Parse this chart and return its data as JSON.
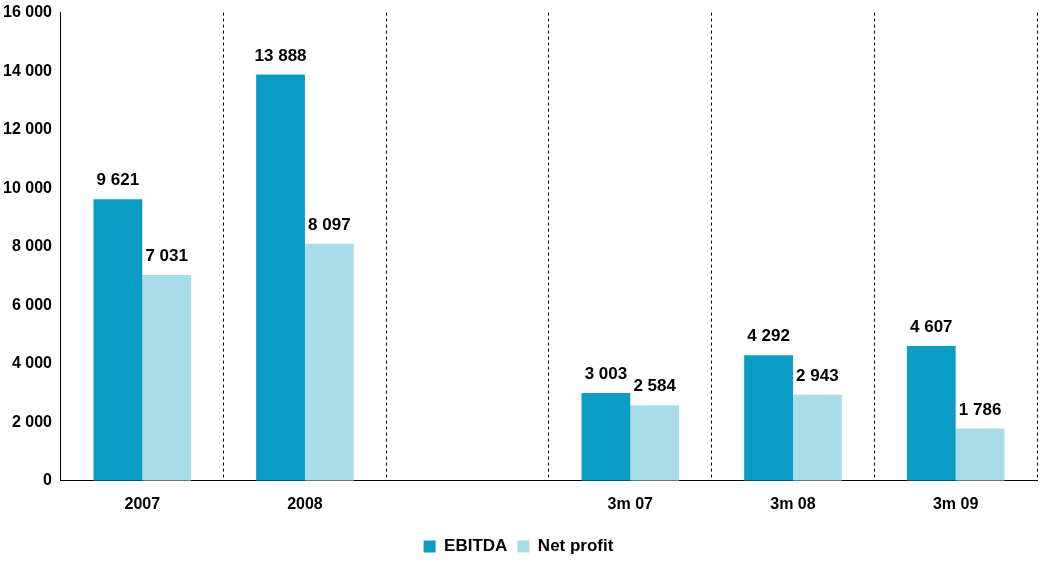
{
  "chart_data": {
    "type": "bar",
    "categories": [
      "2007",
      "2008",
      null,
      "3m 07",
      "3m 08",
      "3m 09"
    ],
    "series": [
      {
        "name": "EBITDA",
        "color": "#0a9cc4",
        "values": [
          9621,
          13888,
          null,
          3003,
          4292,
          4607
        ],
        "value_labels": [
          "9 621",
          "13 888",
          null,
          "3 003",
          "4 292",
          "4 607"
        ]
      },
      {
        "name": "Net profit",
        "color": "#a8dce8",
        "values": [
          7031,
          8097,
          null,
          2584,
          2943,
          1786
        ],
        "value_labels": [
          "7 031",
          "8 097",
          null,
          "2 584",
          "2 943",
          "1 786"
        ]
      }
    ],
    "ylim": [
      0,
      16000
    ],
    "yticks": [
      {
        "value": 0,
        "label": "0"
      },
      {
        "value": 2000,
        "label": "2 000"
      },
      {
        "value": 4000,
        "label": "4 000"
      },
      {
        "value": 6000,
        "label": "6 000"
      },
      {
        "value": 8000,
        "label": "8 000"
      },
      {
        "value": 10000,
        "label": "10 000"
      },
      {
        "value": 12000,
        "label": "12 000"
      },
      {
        "value": 14000,
        "label": "14 000"
      },
      {
        "value": 16000,
        "label": "16 000"
      }
    ],
    "grid": "x",
    "legend": "bottom"
  }
}
